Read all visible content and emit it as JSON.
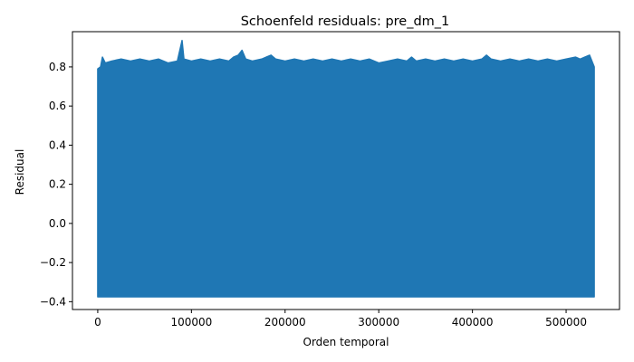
{
  "chart_data": {
    "type": "line",
    "title": "Schoenfeld residuals: pre_dm_1",
    "xlabel": "Orden temporal",
    "ylabel": "Residual",
    "xlim": [
      -27000,
      557000
    ],
    "ylim": [
      -0.44,
      0.98
    ],
    "grid": false,
    "legend": "none",
    "colors": {
      "series": "#1f77b4"
    },
    "x_ticks": [
      0,
      100000,
      200000,
      300000,
      400000,
      500000
    ],
    "x_tick_labels": [
      "0",
      "100000",
      "200000",
      "300000",
      "400000",
      "500000"
    ],
    "y_ticks": [
      -0.4,
      -0.2,
      0.0,
      0.2,
      0.4,
      0.6,
      0.8
    ],
    "y_tick_labels": [
      "−0.4",
      "−0.2",
      "0.0",
      "0.2",
      "0.4",
      "0.6",
      "0.8"
    ],
    "series": [
      {
        "x_range": [
          0,
          530000
        ],
        "band_min": -0.375,
        "band_max_typical": 0.83,
        "upper_envelope": [
          [
            0,
            0.79
          ],
          [
            3000,
            0.8
          ],
          [
            5000,
            0.85
          ],
          [
            8000,
            0.82
          ],
          [
            15000,
            0.83
          ],
          [
            25000,
            0.84
          ],
          [
            35000,
            0.83
          ],
          [
            45000,
            0.84
          ],
          [
            55000,
            0.83
          ],
          [
            65000,
            0.84
          ],
          [
            75000,
            0.82
          ],
          [
            85000,
            0.83
          ],
          [
            90000,
            0.935
          ],
          [
            92000,
            0.84
          ],
          [
            100000,
            0.83
          ],
          [
            110000,
            0.84
          ],
          [
            120000,
            0.83
          ],
          [
            130000,
            0.84
          ],
          [
            140000,
            0.83
          ],
          [
            145000,
            0.85
          ],
          [
            150000,
            0.86
          ],
          [
            154000,
            0.885
          ],
          [
            158000,
            0.84
          ],
          [
            165000,
            0.83
          ],
          [
            175000,
            0.84
          ],
          [
            180000,
            0.85
          ],
          [
            185000,
            0.86
          ],
          [
            190000,
            0.84
          ],
          [
            200000,
            0.83
          ],
          [
            210000,
            0.84
          ],
          [
            220000,
            0.83
          ],
          [
            230000,
            0.84
          ],
          [
            240000,
            0.83
          ],
          [
            250000,
            0.84
          ],
          [
            260000,
            0.83
          ],
          [
            270000,
            0.84
          ],
          [
            280000,
            0.83
          ],
          [
            290000,
            0.84
          ],
          [
            300000,
            0.82
          ],
          [
            310000,
            0.83
          ],
          [
            320000,
            0.84
          ],
          [
            330000,
            0.83
          ],
          [
            335000,
            0.85
          ],
          [
            340000,
            0.83
          ],
          [
            350000,
            0.84
          ],
          [
            360000,
            0.83
          ],
          [
            370000,
            0.84
          ],
          [
            380000,
            0.83
          ],
          [
            390000,
            0.84
          ],
          [
            400000,
            0.83
          ],
          [
            410000,
            0.84
          ],
          [
            415000,
            0.86
          ],
          [
            420000,
            0.84
          ],
          [
            430000,
            0.83
          ],
          [
            440000,
            0.84
          ],
          [
            450000,
            0.83
          ],
          [
            460000,
            0.84
          ],
          [
            470000,
            0.83
          ],
          [
            480000,
            0.84
          ],
          [
            490000,
            0.83
          ],
          [
            500000,
            0.84
          ],
          [
            510000,
            0.85
          ],
          [
            515000,
            0.84
          ],
          [
            520000,
            0.85
          ],
          [
            525000,
            0.86
          ],
          [
            530000,
            0.8
          ]
        ]
      }
    ]
  }
}
